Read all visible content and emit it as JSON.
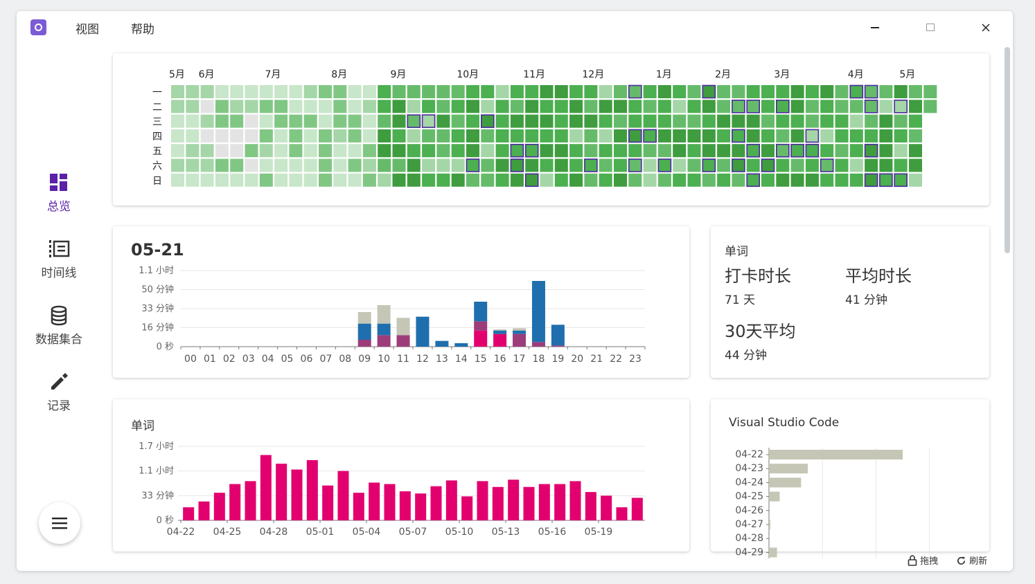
{
  "menu": {
    "view": "视图",
    "help": "帮助"
  },
  "window_controls": {
    "minimize": "—",
    "maximize": "☐",
    "close": "✕"
  },
  "nav": {
    "overview": "总览",
    "timeline": "时间线",
    "datasets": "数据集合",
    "records": "记录"
  },
  "heatmap": {
    "months": [
      "5月",
      "6月",
      "7月",
      "8月",
      "9月",
      "10月",
      "11月",
      "12月",
      "1月",
      "2月",
      "3月",
      "4月",
      "5月"
    ],
    "weekdays": [
      "一",
      "二",
      "三",
      "四",
      "五",
      "六",
      "日"
    ],
    "colors": [
      "#e3e3e3",
      "#c8e6c9",
      "#a5d6a7",
      "#81c784",
      "#66bb6a",
      "#4caf50",
      "#3f9c3f"
    ]
  },
  "hourly": {
    "date": "05-21",
    "chart_data": {
      "type": "bar",
      "stacked": true,
      "categories": [
        "00",
        "01",
        "02",
        "03",
        "04",
        "05",
        "06",
        "07",
        "08",
        "09",
        "10",
        "11",
        "12",
        "13",
        "14",
        "15",
        "16",
        "17",
        "18",
        "19",
        "20",
        "21",
        "22",
        "23"
      ],
      "y_ticks": [
        "0 秒",
        "16 分钟",
        "33 分钟",
        "50 分钟",
        "1.1 小时"
      ],
      "ylim": [
        0,
        66
      ],
      "series": [
        {
          "color": "#e2006f",
          "values": [
            0,
            0,
            0,
            0,
            0,
            0,
            0,
            0,
            0,
            0,
            0,
            0,
            0,
            0,
            0,
            14,
            11,
            0,
            0,
            0,
            0,
            0,
            0,
            0
          ]
        },
        {
          "color": "#9c3d7a",
          "values": [
            0,
            0,
            0,
            0,
            0,
            0,
            0,
            0,
            0,
            6,
            10,
            10,
            0,
            0,
            0,
            8,
            0,
            11,
            4,
            1,
            0,
            0,
            0,
            0
          ]
        },
        {
          "color": "#1f6fae",
          "values": [
            0,
            0,
            0,
            0,
            0,
            0,
            0,
            0,
            0,
            14,
            10,
            0,
            26,
            5,
            3,
            17,
            3,
            3,
            53,
            18,
            0,
            0,
            0,
            0
          ]
        },
        {
          "color": "#c5c6b5",
          "values": [
            0,
            0,
            0,
            0,
            0,
            0,
            0,
            0,
            0,
            10,
            16,
            15,
            0,
            0,
            0,
            0,
            1,
            2,
            0,
            0,
            0,
            0,
            0,
            0
          ]
        }
      ]
    }
  },
  "stats": {
    "title": "单词",
    "checkin_label": "打卡时长",
    "checkin_value": "71 天",
    "avg_label": "平均时长",
    "avg_value": "41 分钟",
    "avg30_label": "30天平均",
    "avg30_value": "44 分钟"
  },
  "daily": {
    "title": "单词",
    "chart_data": {
      "type": "bar",
      "x_ticks": [
        "04-22",
        "04-25",
        "04-28",
        "05-01",
        "05-04",
        "05-07",
        "05-10",
        "05-13",
        "05-16",
        "05-19"
      ],
      "y_ticks": [
        "0 秒",
        "33 分钟",
        "1.1 小时",
        "1.7 小时"
      ],
      "ylim": [
        0,
        102
      ],
      "color": "#e2006f",
      "values": [
        18,
        26,
        38,
        50,
        54,
        90,
        78,
        70,
        83,
        48,
        68,
        38,
        52,
        50,
        40,
        37,
        47,
        55,
        33,
        54,
        46,
        56,
        46,
        50,
        50,
        54,
        39,
        34,
        18,
        31
      ]
    }
  },
  "vscode": {
    "title": "Visual Studio Code",
    "chart_data": {
      "type": "bar",
      "orientation": "horizontal",
      "categories": [
        "04-22",
        "04-23",
        "04-24",
        "04-25",
        "04-26",
        "04-27",
        "04-28",
        "04-29"
      ],
      "values": [
        100,
        29,
        24,
        8,
        0,
        1,
        0,
        6
      ],
      "color": "#c5c6b5"
    }
  },
  "status_bar": {
    "lock_label": "拖拽",
    "refresh_label": "刷新"
  }
}
